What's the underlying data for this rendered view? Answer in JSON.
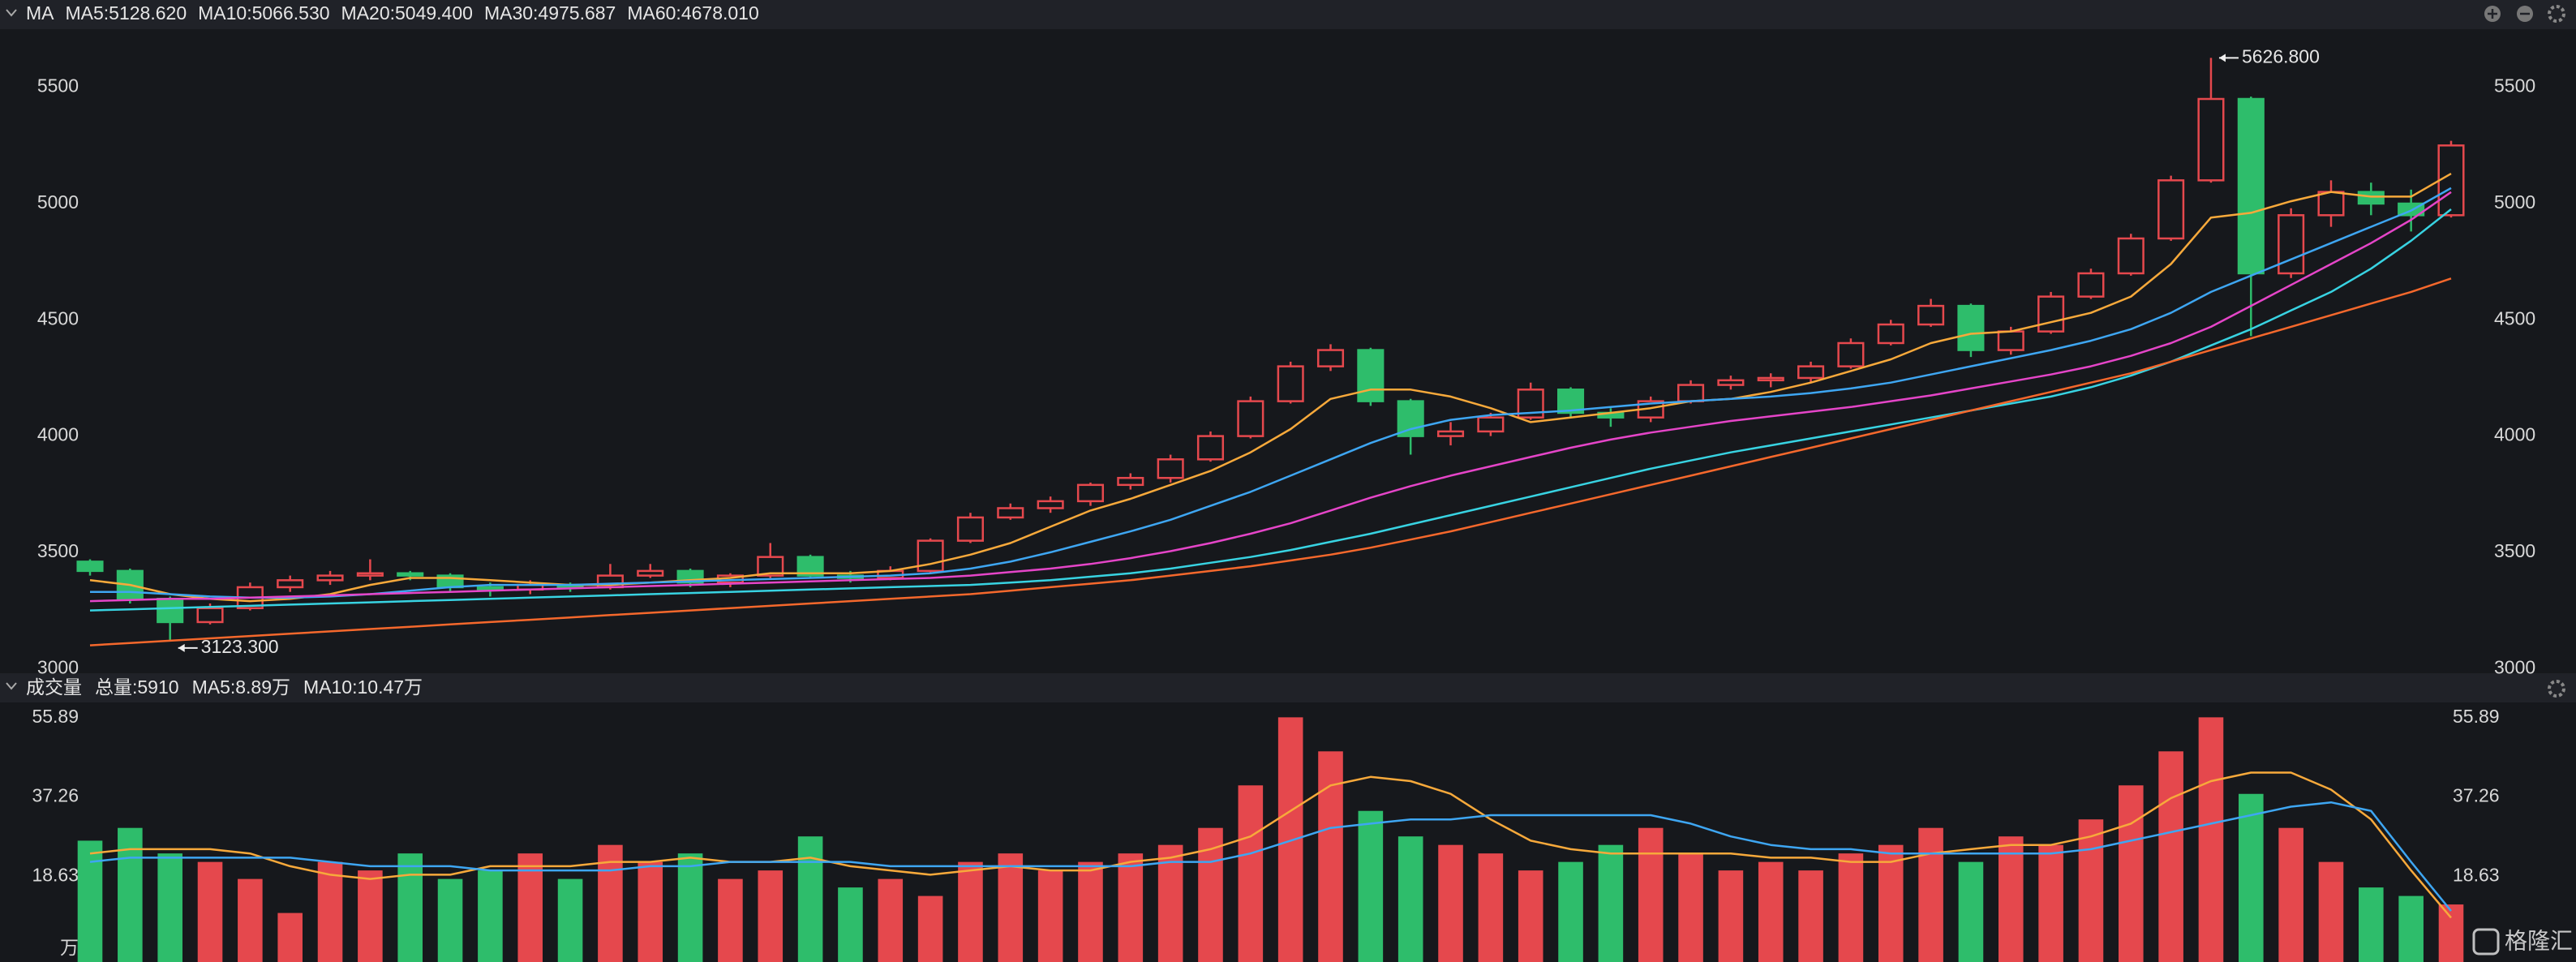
{
  "chart_data": [
    {
      "type": "candlestick",
      "indicator": "MA",
      "up_color": "#e5484d",
      "down_color": "#2ebd6b",
      "ylim": [
        2980,
        5750
      ],
      "yticks": [
        3000,
        3500,
        4000,
        4500,
        5000,
        5500
      ],
      "candles": [
        [
          3460,
          3470,
          3400,
          3420
        ],
        [
          3420,
          3430,
          3280,
          3300
        ],
        [
          3300,
          3310,
          3123.3,
          3200
        ],
        [
          3200,
          3280,
          3190,
          3260
        ],
        [
          3260,
          3370,
          3250,
          3350
        ],
        [
          3350,
          3400,
          3330,
          3380
        ],
        [
          3380,
          3420,
          3360,
          3400
        ],
        [
          3400,
          3470,
          3380,
          3410
        ],
        [
          3410,
          3420,
          3380,
          3400
        ],
        [
          3400,
          3410,
          3330,
          3350
        ],
        [
          3350,
          3370,
          3310,
          3340
        ],
        [
          3340,
          3380,
          3320,
          3360
        ],
        [
          3360,
          3370,
          3330,
          3350
        ],
        [
          3350,
          3450,
          3340,
          3400
        ],
        [
          3400,
          3450,
          3390,
          3420
        ],
        [
          3420,
          3430,
          3350,
          3370
        ],
        [
          3370,
          3410,
          3350,
          3400
        ],
        [
          3400,
          3540,
          3390,
          3480
        ],
        [
          3480,
          3490,
          3390,
          3400
        ],
        [
          3400,
          3420,
          3370,
          3390
        ],
        [
          3390,
          3440,
          3380,
          3420
        ],
        [
          3420,
          3560,
          3410,
          3550
        ],
        [
          3550,
          3670,
          3540,
          3650
        ],
        [
          3650,
          3710,
          3640,
          3690
        ],
        [
          3690,
          3740,
          3670,
          3720
        ],
        [
          3720,
          3800,
          3700,
          3790
        ],
        [
          3790,
          3840,
          3770,
          3820
        ],
        [
          3820,
          3920,
          3800,
          3900
        ],
        [
          3900,
          4020,
          3890,
          4000
        ],
        [
          4000,
          4170,
          3990,
          4150
        ],
        [
          4150,
          4320,
          4140,
          4300
        ],
        [
          4300,
          4395,
          4280,
          4370
        ],
        [
          4370,
          4380,
          4130,
          4150
        ],
        [
          4150,
          4160,
          3920,
          4000
        ],
        [
          4000,
          4060,
          3960,
          4020
        ],
        [
          4020,
          4100,
          4000,
          4080
        ],
        [
          4080,
          4230,
          4070,
          4200
        ],
        [
          4200,
          4210,
          4080,
          4100
        ],
        [
          4100,
          4120,
          4040,
          4080
        ],
        [
          4080,
          4170,
          4060,
          4150
        ],
        [
          4150,
          4240,
          4140,
          4220
        ],
        [
          4220,
          4260,
          4200,
          4240
        ],
        [
          4240,
          4270,
          4210,
          4250
        ],
        [
          4250,
          4320,
          4230,
          4300
        ],
        [
          4300,
          4420,
          4290,
          4400
        ],
        [
          4400,
          4500,
          4390,
          4480
        ],
        [
          4480,
          4590,
          4470,
          4560
        ],
        [
          4560,
          4570,
          4340,
          4370
        ],
        [
          4370,
          4470,
          4350,
          4450
        ],
        [
          4450,
          4620,
          4440,
          4600
        ],
        [
          4600,
          4720,
          4590,
          4700
        ],
        [
          4700,
          4870,
          4690,
          4850
        ],
        [
          4850,
          5120,
          4840,
          5100
        ],
        [
          5100,
          5626.8,
          5090,
          5450
        ],
        [
          5450,
          5460,
          4430,
          4700
        ],
        [
          4700,
          4980,
          4680,
          4950
        ],
        [
          4950,
          5100,
          4900,
          5050
        ],
        [
          5050,
          5090,
          4950,
          5000
        ],
        [
          5000,
          5060,
          4880,
          4950
        ],
        [
          4950,
          5270,
          4940,
          5250
        ]
      ],
      "series": [
        {
          "name": "MA5:5128.620",
          "color": "#f7a93b",
          "values": [
            3380,
            3360,
            3320,
            3300,
            3290,
            3300,
            3320,
            3360,
            3390,
            3390,
            3380,
            3370,
            3360,
            3360,
            3370,
            3380,
            3390,
            3410,
            3410,
            3410,
            3420,
            3450,
            3490,
            3540,
            3610,
            3680,
            3730,
            3790,
            3850,
            3930,
            4030,
            4160,
            4200,
            4200,
            4170,
            4120,
            4060,
            4080,
            4100,
            4120,
            4150,
            4160,
            4190,
            4230,
            4280,
            4330,
            4400,
            4440,
            4450,
            4490,
            4530,
            4600,
            4740,
            4940,
            4960,
            5010,
            5050,
            5030,
            5030,
            5128.62
          ]
        },
        {
          "name": "MA10:5066.530",
          "color": "#3ea6f2",
          "values": [
            3330,
            3330,
            3320,
            3310,
            3305,
            3305,
            3310,
            3320,
            3335,
            3350,
            3360,
            3360,
            3360,
            3365,
            3370,
            3375,
            3380,
            3385,
            3390,
            3395,
            3400,
            3410,
            3430,
            3460,
            3500,
            3545,
            3590,
            3640,
            3700,
            3760,
            3830,
            3900,
            3970,
            4030,
            4070,
            4090,
            4100,
            4110,
            4125,
            4140,
            4150,
            4160,
            4170,
            4185,
            4205,
            4230,
            4265,
            4300,
            4335,
            4370,
            4410,
            4460,
            4530,
            4620,
            4690,
            4760,
            4830,
            4900,
            4970,
            5066.53
          ]
        },
        {
          "name": "MA20:5049.400",
          "color": "#e545c8",
          "values": [
            3290,
            3295,
            3300,
            3300,
            3305,
            3310,
            3315,
            3320,
            3325,
            3330,
            3335,
            3340,
            3345,
            3350,
            3355,
            3360,
            3365,
            3370,
            3375,
            3380,
            3385,
            3390,
            3400,
            3415,
            3430,
            3450,
            3475,
            3505,
            3540,
            3580,
            3625,
            3680,
            3735,
            3785,
            3830,
            3870,
            3910,
            3950,
            3985,
            4015,
            4040,
            4065,
            4085,
            4105,
            4125,
            4150,
            4175,
            4205,
            4235,
            4265,
            4300,
            4345,
            4400,
            4470,
            4560,
            4650,
            4740,
            4830,
            4930,
            5049.4
          ]
        },
        {
          "name": "MA30:4975.687",
          "color": "#38d3e2",
          "values": [
            3250,
            3255,
            3260,
            3265,
            3270,
            3275,
            3280,
            3285,
            3290,
            3295,
            3300,
            3305,
            3310,
            3315,
            3320,
            3325,
            3330,
            3335,
            3340,
            3345,
            3350,
            3355,
            3360,
            3370,
            3380,
            3395,
            3410,
            3430,
            3455,
            3480,
            3510,
            3545,
            3580,
            3620,
            3660,
            3700,
            3740,
            3780,
            3820,
            3860,
            3895,
            3930,
            3960,
            3990,
            4020,
            4050,
            4080,
            4110,
            4140,
            4170,
            4210,
            4260,
            4320,
            4390,
            4460,
            4540,
            4620,
            4720,
            4840,
            4975.687
          ]
        },
        {
          "name": "MA60:4678.010",
          "color": "#f5682c",
          "values": [
            3100,
            3110,
            3120,
            3130,
            3140,
            3150,
            3160,
            3170,
            3180,
            3190,
            3200,
            3210,
            3220,
            3230,
            3240,
            3250,
            3260,
            3270,
            3280,
            3290,
            3300,
            3310,
            3320,
            3335,
            3350,
            3365,
            3380,
            3400,
            3420,
            3440,
            3465,
            3490,
            3520,
            3555,
            3590,
            3630,
            3670,
            3710,
            3750,
            3790,
            3830,
            3870,
            3910,
            3950,
            3990,
            4030,
            4070,
            4110,
            4150,
            4190,
            4230,
            4270,
            4320,
            4370,
            4420,
            4470,
            4520,
            4570,
            4620,
            4678.01
          ]
        }
      ],
      "annotations": [
        {
          "text": "5626.800",
          "value": 5626.8
        },
        {
          "text": "3123.300",
          "value": 3123.3
        }
      ]
    },
    {
      "type": "bar",
      "title": "成交量",
      "total": "总量:5910",
      "total_color": "#e5484d",
      "unit": "万",
      "ylim": [
        0,
        59.5
      ],
      "yticks": [
        18.63,
        37.26,
        55.89
      ],
      "values": [
        27,
        30,
        24,
        22,
        18,
        10,
        22,
        20,
        24,
        18,
        20,
        24,
        18,
        26,
        22,
        24,
        18,
        20,
        28,
        16,
        18,
        14,
        22,
        24,
        20,
        22,
        24,
        26,
        30,
        40,
        56,
        48,
        34,
        28,
        26,
        24,
        20,
        22,
        26,
        30,
        24,
        20,
        22,
        20,
        24,
        26,
        30,
        22,
        28,
        26,
        32,
        40,
        48,
        56,
        38,
        30,
        22,
        16,
        14,
        12
      ],
      "series": [
        {
          "name": "MA5:8.89万",
          "color": "#f7a93b",
          "values": [
            24,
            25,
            25,
            25,
            24,
            21,
            19,
            18,
            19,
            19,
            21,
            21,
            21,
            22,
            22,
            23,
            22,
            22,
            23,
            21,
            20,
            19,
            20,
            21,
            20,
            20,
            22,
            23,
            25,
            28,
            34,
            40,
            42,
            41,
            38,
            32,
            27,
            25,
            24,
            24,
            24,
            24,
            23,
            23,
            22,
            22,
            24,
            25,
            26,
            26,
            28,
            31,
            37,
            41,
            43,
            43,
            39,
            32,
            20,
            8.89
          ]
        },
        {
          "name": "MA10:10.47万",
          "color": "#3ea6f2",
          "values": [
            22,
            23,
            23,
            23,
            23,
            23,
            22,
            21,
            21,
            21,
            20,
            20,
            20,
            20,
            21,
            21,
            22,
            22,
            22,
            22,
            21,
            21,
            21,
            21,
            21,
            21,
            21,
            22,
            22,
            24,
            27,
            30,
            31,
            32,
            32,
            33,
            33,
            33,
            33,
            33,
            31,
            28,
            26,
            25,
            25,
            24,
            24,
            24,
            24,
            24,
            25,
            27,
            29,
            31,
            33,
            35,
            36,
            34,
            22,
            10.47
          ]
        }
      ]
    }
  ],
  "watermark": "格隆汇"
}
